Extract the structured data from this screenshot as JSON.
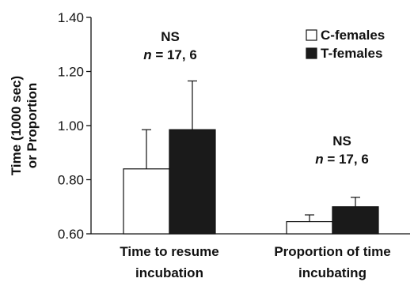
{
  "chart_data": {
    "type": "bar",
    "ylabel_lines": [
      "Time (1000 sec)",
      "or Proportion"
    ],
    "ylim": [
      0.6,
      1.4
    ],
    "yticks": [
      "0.60",
      "0.80",
      "1.00",
      "1.20",
      "1.40"
    ],
    "categories": [
      [
        "Time to resume",
        "incubation"
      ],
      [
        "Proportion of time",
        "incubating"
      ]
    ],
    "series": [
      {
        "name": "C-females",
        "color": "#ffffff",
        "values": [
          0.84,
          0.645
        ],
        "errors": [
          0.145,
          0.025
        ]
      },
      {
        "name": "T-females",
        "color": "#1a1a1a",
        "values": [
          0.985,
          0.7
        ],
        "errors": [
          0.18,
          0.035
        ]
      }
    ],
    "annotations": [
      {
        "line1": "NS",
        "italic": "n",
        "rest": " = 17, 6"
      },
      {
        "line1": "NS",
        "italic": "n",
        "rest": " = 17, 6"
      }
    ],
    "legend": "top-right",
    "grid": false
  }
}
